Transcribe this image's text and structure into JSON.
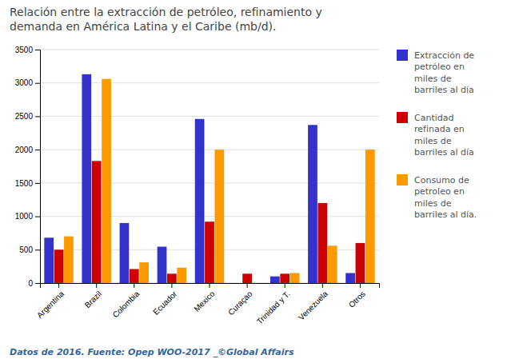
{
  "chart_data": {
    "type": "bar",
    "title": "Relación entre la extracción de petróleo, refinamiento y\ndemanda en América Latina y el Caribe (mb/d).",
    "categories": [
      "Argentina",
      "Brazil",
      "Colombia",
      "Ecuador",
      "Mexico",
      "Curaçao",
      "Trinidad y T.",
      "Venezuela",
      "Otros"
    ],
    "series": [
      {
        "name": "Extracción de\npetróleo en\nmiles de\nbarriles al día",
        "color": "#3333cc",
        "values": [
          680,
          3130,
          900,
          545,
          2460,
          0,
          100,
          2370,
          150
        ]
      },
      {
        "name": "Cantidad\nrefinada en\nmiles de\nbarriles al día",
        "color": "#cc0000",
        "values": [
          500,
          1830,
          210,
          140,
          920,
          140,
          140,
          1200,
          600
        ]
      },
      {
        "name": "Consumo de\npetroleo en\nmiles de\nbarriles al día.",
        "color": "#ff9900",
        "values": [
          700,
          3060,
          310,
          230,
          2000,
          0,
          150,
          560,
          2000
        ]
      }
    ],
    "ylim": [
      0,
      3500
    ],
    "yticks": [
      0,
      500,
      1000,
      1500,
      2000,
      2500,
      3000,
      3500
    ],
    "grid": true,
    "footnote": "Datos de 2016. Fuente: Opep WOO-2017 _©Global Affairs"
  }
}
